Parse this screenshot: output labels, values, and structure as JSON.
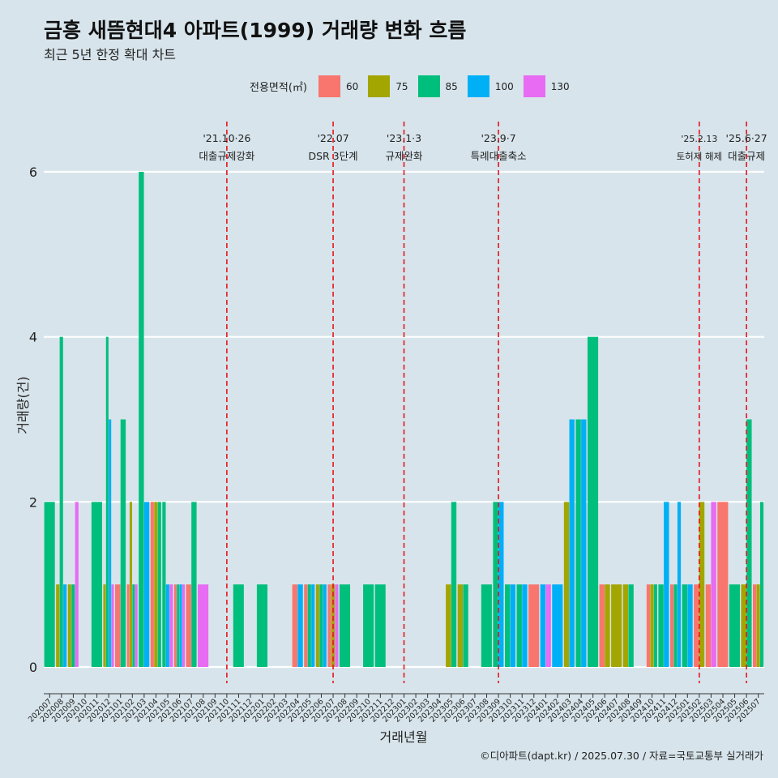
{
  "title": "금흥 새뜸현대4 아파트(1999) 거래량 변화 흐름",
  "subtitle": "최근 5년 한정 확대 차트",
  "caption": "©디아파트(dapt.kr) / 2025.07.30 / 자료=국토교통부 실거래가",
  "legend": {
    "title": "전용면적(㎡)",
    "items": [
      {
        "label": "60",
        "color": "#f8766d"
      },
      {
        "label": "75",
        "color": "#a3a500"
      },
      {
        "label": "85",
        "color": "#00bf7d"
      },
      {
        "label": "100",
        "color": "#00b0f6"
      },
      {
        "label": "130",
        "color": "#e76bf3"
      }
    ]
  },
  "chart_data": {
    "type": "bar",
    "xlabel": "거래년월",
    "ylabel": "거래량(건)",
    "ylim": [
      0,
      6
    ],
    "yticks": [
      0,
      2,
      4,
      6
    ],
    "grid": true,
    "legend_position": "top",
    "categories": [
      "202007",
      "202008",
      "202009",
      "202010",
      "202011",
      "202012",
      "202101",
      "202102",
      "202103",
      "202104",
      "202105",
      "202106",
      "202107",
      "202108",
      "202109",
      "202110",
      "202111",
      "202112",
      "202201",
      "202202",
      "202203",
      "202204",
      "202205",
      "202206",
      "202207",
      "202208",
      "202209",
      "202210",
      "202211",
      "202212",
      "202301",
      "202302",
      "202303",
      "202304",
      "202305",
      "202306",
      "202307",
      "202308",
      "202309",
      "202310",
      "202311",
      "202312",
      "202401",
      "202402",
      "202403",
      "202404",
      "202405",
      "202406",
      "202407",
      "202408",
      "202409",
      "202410",
      "202411",
      "202412",
      "202501",
      "202502",
      "202503",
      "202504",
      "202505",
      "202506",
      "202507"
    ],
    "series": [
      {
        "name": "60",
        "values": [
          0,
          0,
          0,
          0,
          0,
          0,
          1,
          1,
          0,
          2,
          0,
          1,
          1,
          0,
          0,
          0,
          0,
          0,
          0,
          0,
          0,
          1,
          1,
          0,
          1,
          0,
          0,
          0,
          0,
          0,
          0,
          0,
          0,
          0,
          0,
          0,
          0,
          0,
          0,
          0,
          0,
          1,
          0,
          0,
          0,
          0,
          0,
          1,
          0,
          0,
          0,
          1,
          0,
          1,
          0,
          1,
          1,
          2,
          0,
          0,
          1
        ]
      },
      {
        "name": "75",
        "values": [
          0,
          1,
          1,
          0,
          0,
          1,
          0,
          2,
          0,
          2,
          0,
          0,
          0,
          0,
          0,
          0,
          0,
          0,
          0,
          0,
          0,
          0,
          0,
          1,
          1,
          0,
          0,
          0,
          0,
          0,
          0,
          0,
          0,
          0,
          1,
          1,
          0,
          0,
          0,
          0,
          0,
          0,
          0,
          0,
          2,
          0,
          0,
          1,
          1,
          1,
          0,
          1,
          0,
          0,
          0,
          2,
          0,
          0,
          0,
          1,
          1
        ]
      },
      {
        "name": "85",
        "values": [
          2,
          4,
          1,
          0,
          2,
          4,
          3,
          1,
          6,
          2,
          2,
          1,
          2,
          0,
          0,
          0,
          1,
          0,
          1,
          0,
          0,
          0,
          1,
          1,
          0,
          1,
          0,
          1,
          1,
          0,
          0,
          0,
          0,
          0,
          2,
          1,
          0,
          1,
          2,
          1,
          1,
          0,
          0,
          0,
          0,
          3,
          4,
          0,
          0,
          1,
          0,
          1,
          1,
          1,
          1,
          0,
          0,
          0,
          1,
          3,
          2
        ]
      },
      {
        "name": "100",
        "values": [
          0,
          1,
          0,
          0,
          0,
          3,
          0,
          0,
          2,
          0,
          1,
          1,
          0,
          0,
          0,
          0,
          0,
          0,
          0,
          0,
          0,
          1,
          1,
          1,
          0,
          0,
          0,
          0,
          0,
          0,
          0,
          0,
          0,
          0,
          0,
          0,
          0,
          0,
          2,
          1,
          1,
          0,
          1,
          1,
          3,
          3,
          0,
          0,
          0,
          0,
          0,
          0,
          2,
          2,
          1,
          0,
          0,
          0,
          0,
          0,
          0
        ]
      },
      {
        "name": "130",
        "values": [
          0,
          0,
          2,
          0,
          0,
          1,
          0,
          1,
          0,
          0,
          1,
          1,
          0,
          1,
          0,
          0,
          0,
          0,
          0,
          0,
          0,
          0,
          0,
          0,
          1,
          0,
          0,
          0,
          0,
          0,
          0,
          0,
          0,
          0,
          0,
          0,
          0,
          0,
          0,
          0,
          0,
          0,
          1,
          0,
          0,
          0,
          0,
          0,
          0,
          0,
          0,
          0,
          0,
          0,
          0,
          0,
          2,
          0,
          0,
          0,
          0
        ]
      }
    ],
    "annotations": [
      {
        "at": "202110",
        "date": "'21.10·26",
        "label": "대출규제강화"
      },
      {
        "at": "202207",
        "date": "'22.07",
        "label": "DSR 3단계"
      },
      {
        "at": "202301",
        "date": "'23.1·3",
        "label": "규제완화"
      },
      {
        "at": "202309",
        "date": "'23.9·7",
        "label": "특례대출축소"
      },
      {
        "at": "202502",
        "date": "'25.2.13",
        "label": "토허제 해제"
      },
      {
        "at": "202506",
        "date": "'25.6·27",
        "label": "대출규제"
      }
    ]
  }
}
